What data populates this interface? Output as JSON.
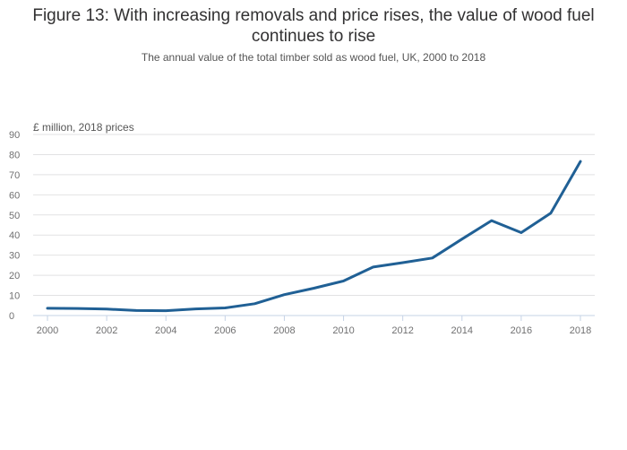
{
  "chart_data": {
    "type": "line",
    "title": "Figure 13: With increasing removals and price rises, the value of wood fuel continues to rise",
    "subtitle": "The annual value of the total timber sold as wood fuel, UK, 2000 to 2018",
    "xlabel": "",
    "ylabel": "£ million, 2018 prices",
    "x": [
      2000,
      2001,
      2002,
      2003,
      2004,
      2005,
      2006,
      2007,
      2008,
      2009,
      2010,
      2011,
      2012,
      2013,
      2014,
      2015,
      2016,
      2017,
      2018
    ],
    "series": [
      {
        "name": "Value of wood fuel",
        "color": "#206095",
        "values": [
          3.6,
          3.5,
          3.2,
          2.5,
          2.4,
          3.3,
          3.8,
          5.9,
          10.4,
          13.6,
          17.2,
          24.1,
          26.3,
          28.6,
          38.0,
          47.2,
          41.2,
          50.9,
          76.6
        ]
      }
    ],
    "xlim": [
      2000,
      2018
    ],
    "ylim": [
      0,
      90
    ],
    "yticks": [
      0,
      10,
      20,
      30,
      40,
      50,
      60,
      70,
      80,
      90
    ],
    "xticks": [
      2000,
      2002,
      2004,
      2006,
      2008,
      2010,
      2012,
      2014,
      2016,
      2018
    ],
    "grid": true,
    "legend": "none"
  }
}
